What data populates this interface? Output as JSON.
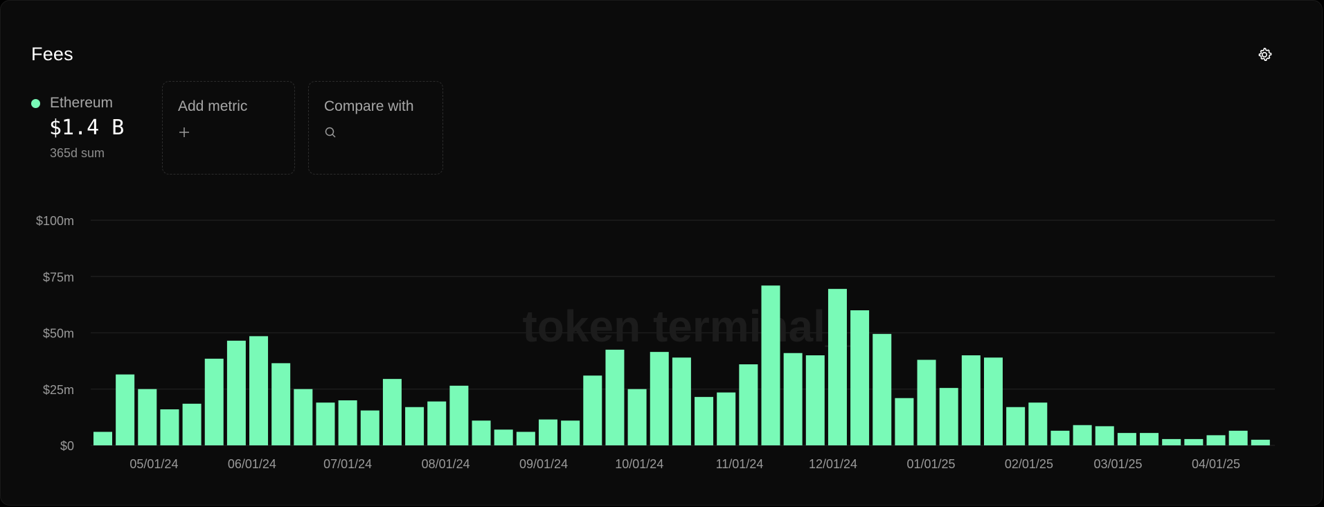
{
  "card": {
    "title": "Fees",
    "settings_icon": "gear-icon"
  },
  "legend": {
    "name": "Ethereum",
    "color": "#79fab7",
    "value": "$1.4 B",
    "sub": "365d sum"
  },
  "add_metric": {
    "label": "Add metric",
    "icon": "plus-icon"
  },
  "compare": {
    "label": "Compare with",
    "icon": "search-icon"
  },
  "watermark": "token terminal_",
  "chart_data": {
    "type": "bar",
    "ylim": [
      0,
      100
    ],
    "y_ticks": [
      {
        "value": 0,
        "label": "$0"
      },
      {
        "value": 25,
        "label": "$25m"
      },
      {
        "value": 50,
        "label": "$50m"
      },
      {
        "value": 75,
        "label": "$75m"
      },
      {
        "value": 100,
        "label": "$100m"
      }
    ],
    "x_tick_labels": [
      "05/01/24",
      "06/01/24",
      "07/01/24",
      "08/01/24",
      "09/01/24",
      "10/01/24",
      "11/01/24",
      "12/01/24",
      "01/01/25",
      "02/01/25",
      "03/01/25",
      "04/01/25"
    ],
    "x_tick_bar_index": [
      2.3,
      6.7,
      11,
      15.4,
      19.8,
      24.1,
      28.6,
      32.8,
      37.2,
      41.6,
      45.6,
      50
    ],
    "grid": true,
    "bar_color": "#79fab7",
    "series": [
      {
        "values": [
          6,
          31.5,
          25,
          16,
          18.5,
          38.5,
          46.5,
          48.5,
          36.5,
          25,
          19,
          20,
          15.5,
          29.5,
          17,
          19.5,
          26.5,
          11,
          7,
          6,
          11.5,
          11,
          31,
          42.5,
          25,
          41.5,
          39,
          21.5,
          23.5,
          36,
          71,
          41,
          40,
          69.5,
          60,
          49.5,
          21,
          38,
          25.5,
          40,
          39,
          17,
          19,
          6.5,
          9,
          8.5,
          5.5,
          5.5,
          2.8,
          2.8,
          4.5,
          6.5,
          2.5
        ]
      }
    ]
  }
}
